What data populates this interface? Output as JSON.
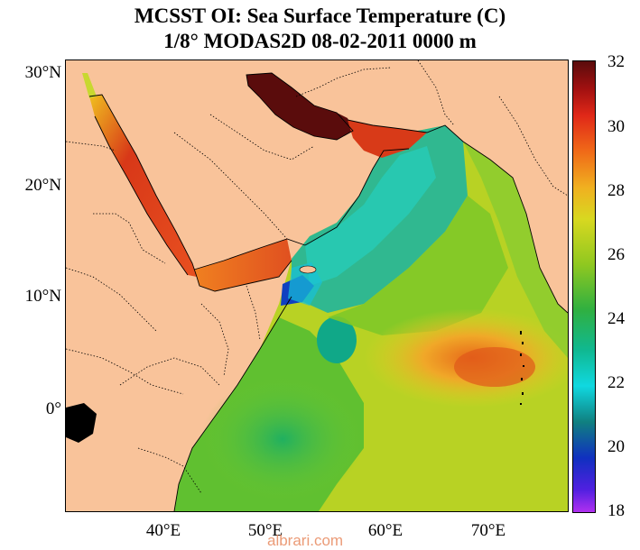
{
  "title_line1": "MCSST OI:  Sea Surface Temperature (C)",
  "title_line2": "1/8° MODAS2D 08-02-2011 0000 m",
  "lat_labels": [
    "30°N",
    "20°N",
    "10°N",
    "0°"
  ],
  "lon_labels": [
    "40°E",
    "50°E",
    "60°E",
    "70°E"
  ],
  "colorbar_labels": [
    "32",
    "30",
    "28",
    "26",
    "24",
    "22",
    "20",
    "18"
  ],
  "watermark": "albrari.com",
  "colors": {
    "land": "#f9c39a",
    "very_hot": "#5a0c0c",
    "hot": "#d8281a",
    "warm": "#f0a020",
    "mild": "#c8d820",
    "cool": "#3cc850",
    "cold": "#10b4c8",
    "very_cold": "#1010a0"
  },
  "chart_data": {
    "type": "heatmap",
    "quantity": "Sea Surface Temperature (C)",
    "xlim": [
      32,
      77
    ],
    "ylim": [
      -9,
      31
    ],
    "color_range": [
      18,
      32
    ],
    "x_ticks": [
      40,
      50,
      60,
      70
    ],
    "y_ticks": [
      30,
      20,
      10,
      0
    ]
  }
}
